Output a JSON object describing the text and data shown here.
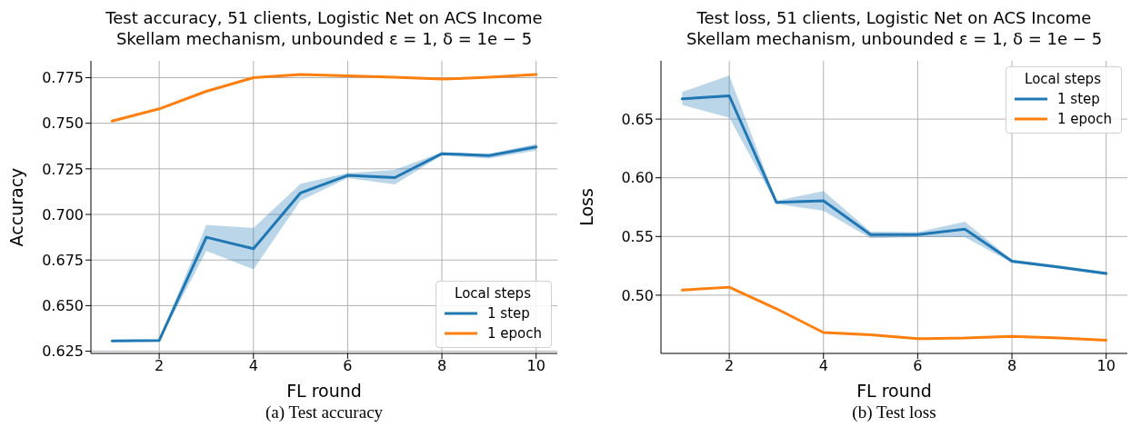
{
  "chart_data": [
    {
      "type": "line",
      "title": "Test accuracy, 51 clients, Logistic Net on ACS Income",
      "subtitle": "Skellam mechanism, unbounded ε = 1, δ = 1e − 5",
      "xlabel": "FL round",
      "ylabel": "Accuracy",
      "legend_title": "Local steps",
      "legend": "bottom right",
      "grid": true,
      "annotations": [
        "(a) Test accuracy"
      ],
      "x": [
        1,
        2,
        3,
        4,
        5,
        6,
        7,
        8,
        9,
        10
      ],
      "xlim": [
        0.55,
        10.45
      ],
      "xticks": [
        2,
        4,
        6,
        8,
        10
      ],
      "ylim": [
        0.6238,
        0.7842
      ],
      "yticks": [
        {
          "value": 0.625,
          "label": "0.625"
        },
        {
          "value": 0.65,
          "label": "0.650"
        },
        {
          "value": 0.675,
          "label": "0.675"
        },
        {
          "value": 0.7,
          "label": "0.700"
        },
        {
          "value": 0.725,
          "label": "0.725"
        },
        {
          "value": 0.75,
          "label": "0.750"
        },
        {
          "value": 0.775,
          "label": "0.775"
        }
      ],
      "series": [
        {
          "name": "1 step",
          "color": "#1f77b4",
          "values": [
            0.6306,
            0.6309,
            0.6875,
            0.6812,
            0.7118,
            0.7214,
            0.7202,
            0.7333,
            0.7323,
            0.737
          ],
          "lower": [
            0.6303,
            0.6306,
            0.68,
            0.6699,
            0.7076,
            0.7199,
            0.7165,
            0.7324,
            0.7306,
            0.735
          ],
          "upper": [
            0.6309,
            0.6312,
            0.6943,
            0.6926,
            0.7168,
            0.7227,
            0.7244,
            0.7341,
            0.7333,
            0.7386
          ]
        },
        {
          "name": "1 epoch",
          "color": "#ff7f0e",
          "values": [
            0.7512,
            0.7579,
            0.7675,
            0.775,
            0.7767,
            0.776,
            0.7752,
            0.7742,
            0.7752,
            0.7767
          ]
        }
      ]
    },
    {
      "type": "line",
      "title": "Test loss, 51 clients, Logistic Net on ACS Income",
      "subtitle": "Skellam mechanism, unbounded ε = 1, δ = 1e − 5",
      "xlabel": "FL round",
      "ylabel": "Loss",
      "legend_title": "Local steps",
      "legend": "top right",
      "grid": true,
      "annotations": [
        "(b) Test loss"
      ],
      "x": [
        1,
        2,
        3,
        4,
        5,
        6,
        7,
        8,
        9,
        10
      ],
      "xlim": [
        0.55,
        10.45
      ],
      "xticks": [
        2,
        4,
        6,
        8,
        10
      ],
      "ylim": [
        0.4504,
        0.6996
      ],
      "yticks": [
        {
          "value": 0.5,
          "label": "0.50"
        },
        {
          "value": 0.55,
          "label": "0.55"
        },
        {
          "value": 0.6,
          "label": "0.60"
        },
        {
          "value": 0.65,
          "label": "0.65"
        }
      ],
      "series": [
        {
          "name": "1 step",
          "color": "#1f77b4",
          "values": [
            0.6672,
            0.6698,
            0.5791,
            0.5804,
            0.5516,
            0.5516,
            0.5563,
            0.5289,
            0.524,
            0.5185
          ],
          "lower": [
            0.662,
            0.6513,
            0.5778,
            0.572,
            0.5484,
            0.5495,
            0.5495,
            0.5276,
            0.5227,
            0.5172
          ],
          "upper": [
            0.673,
            0.6873,
            0.5804,
            0.5887,
            0.5542,
            0.5537,
            0.5626,
            0.5302,
            0.5253,
            0.5198
          ]
        },
        {
          "name": "1 epoch",
          "color": "#ff7f0e",
          "values": [
            0.5044,
            0.5068,
            0.4885,
            0.4682,
            0.4663,
            0.4629,
            0.4635,
            0.465,
            0.4635,
            0.4617
          ]
        }
      ]
    }
  ]
}
